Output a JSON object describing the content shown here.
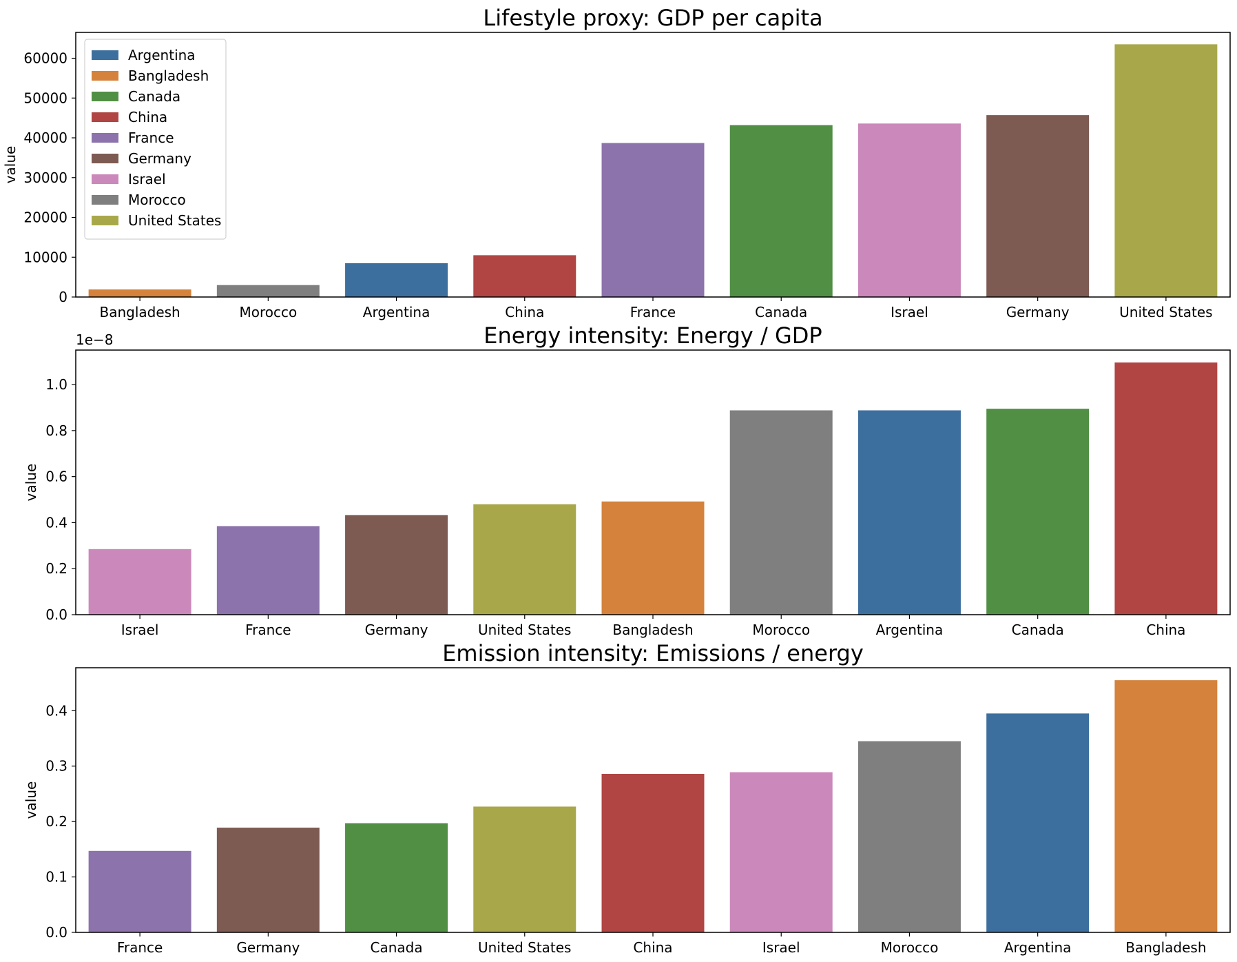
{
  "palette": {
    "Argentina": "#3d6f9e",
    "Bangladesh": "#d4823c",
    "Canada": "#518f45",
    "China": "#b04543",
    "France": "#8c73ab",
    "Germany": "#7d5b52",
    "Israel": "#cb88ba",
    "Morocco": "#7f7f7f",
    "United States": "#a8a84a"
  },
  "legend": {
    "placement": "upper-left",
    "entries": [
      "Argentina",
      "Bangladesh",
      "Canada",
      "China",
      "France",
      "Germany",
      "Israel",
      "Morocco",
      "United States"
    ]
  },
  "chart_data": [
    {
      "type": "bar",
      "title": "Lifestyle proxy: GDP per capita",
      "xlabel": "",
      "ylabel": "value",
      "categories": [
        "Bangladesh",
        "Morocco",
        "Argentina",
        "China",
        "France",
        "Canada",
        "Israel",
        "Germany",
        "United States"
      ],
      "values": [
        1900,
        3000,
        8500,
        10500,
        38700,
        43200,
        43600,
        45700,
        63500
      ],
      "ylim": [
        0,
        66500
      ],
      "yticks": [
        0,
        10000,
        20000,
        30000,
        40000,
        50000,
        60000
      ],
      "ytick_labels": [
        "0",
        "10000",
        "20000",
        "30000",
        "40000",
        "50000",
        "60000"
      ],
      "offset_text": "",
      "legend": true,
      "grid": false
    },
    {
      "type": "bar",
      "title": "Energy intensity: Energy / GDP",
      "xlabel": "",
      "ylabel": "value",
      "categories": [
        "Israel",
        "France",
        "Germany",
        "United States",
        "Bangladesh",
        "Morocco",
        "Argentina",
        "Canada",
        "China"
      ],
      "values": [
        2.85e-09,
        3.85e-09,
        4.33e-09,
        4.8e-09,
        4.92e-09,
        8.88e-09,
        8.88e-09,
        8.95e-09,
        1.096e-08
      ],
      "ylim": [
        0,
        1.15e-08
      ],
      "yticks": [
        0,
        2e-09,
        4e-09,
        6e-09,
        8e-09,
        1e-08
      ],
      "ytick_labels": [
        "0.0",
        "0.2",
        "0.4",
        "0.6",
        "0.8",
        "1.0"
      ],
      "offset_text": "1e−8",
      "legend": false,
      "grid": false
    },
    {
      "type": "bar",
      "title": "Emission intensity: Emissions / energy",
      "xlabel": "",
      "ylabel": "value",
      "categories": [
        "France",
        "Germany",
        "Canada",
        "United States",
        "China",
        "Israel",
        "Morocco",
        "Argentina",
        "Bangladesh"
      ],
      "values": [
        0.147,
        0.189,
        0.197,
        0.227,
        0.286,
        0.289,
        0.345,
        0.395,
        0.455
      ],
      "ylim": [
        0,
        0.4775
      ],
      "yticks": [
        0,
        0.1,
        0.2,
        0.3,
        0.4
      ],
      "ytick_labels": [
        "0.0",
        "0.1",
        "0.2",
        "0.3",
        "0.4"
      ],
      "offset_text": "",
      "legend": false,
      "grid": false
    }
  ]
}
